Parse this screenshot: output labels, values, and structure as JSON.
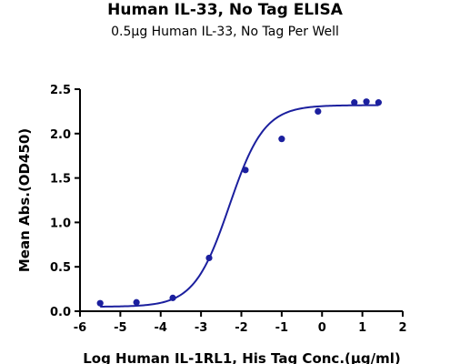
{
  "chart_data": {
    "type": "scatter",
    "title": "Human IL-33, No Tag ELISA",
    "subtitle": "0.5µg Human IL-33, No Tag Per Well",
    "xlabel": "Log Human IL-1RL1, His Tag Conc.(µg/ml)",
    "ylabel": "Mean Abs.(OD450)",
    "xlim": [
      -6,
      2
    ],
    "ylim": [
      0,
      2.5
    ],
    "x_ticks": [
      -6,
      -5,
      -4,
      -3,
      -2,
      -1,
      0,
      1,
      2
    ],
    "y_ticks": [
      0.0,
      0.5,
      1.0,
      1.5,
      2.0,
      2.5
    ],
    "x_tick_labels": [
      "-6",
      "-5",
      "-4",
      "-3",
      "-2",
      "-1",
      "0",
      "1",
      "2"
    ],
    "y_tick_labels": [
      "0.0",
      "0.5",
      "1.0",
      "1.5",
      "2.0",
      "2.5"
    ],
    "grid": false,
    "series": [
      {
        "points": [
          {
            "x": -5.5,
            "y": 0.09
          },
          {
            "x": -4.6,
            "y": 0.1
          },
          {
            "x": -3.7,
            "y": 0.15
          },
          {
            "x": -2.8,
            "y": 0.6
          },
          {
            "x": -1.9,
            "y": 1.59
          },
          {
            "x": -1.0,
            "y": 1.94
          },
          {
            "x": -0.1,
            "y": 2.25
          },
          {
            "x": 0.8,
            "y": 2.35
          },
          {
            "x": 1.1,
            "y": 2.36
          },
          {
            "x": 1.4,
            "y": 2.35
          }
        ],
        "fit": {
          "type": "4PL",
          "bottom": 0.05,
          "top": 2.32,
          "logEC50": -2.3,
          "hillslope": 1.0
        }
      }
    ],
    "color": "#1b1f9e"
  }
}
